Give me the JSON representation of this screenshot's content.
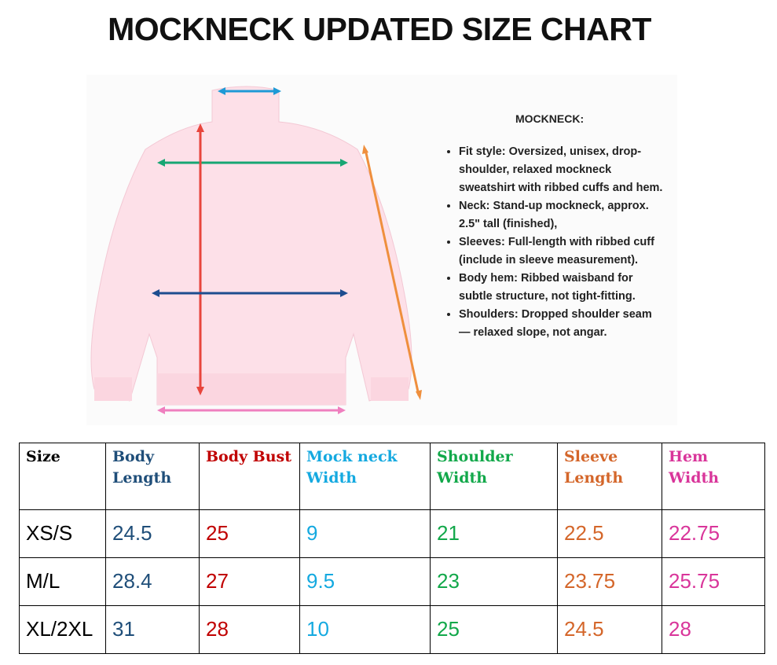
{
  "header": {
    "title": "MOCKNECK UPDATED SIZE CHART"
  },
  "details": {
    "heading": "MOCKNECK:",
    "bullets": [
      "Fit style: Oversized, unisex, drop-shoulder, relaxed mockneck sweatshirt with ribbed cuffs and hem.",
      "Neck: Stand-up mockneck, approx. 2.5\" tall (finished),",
      "Sleeves: Full-length with ribbed cuff (include in sleeve measurement).",
      "Body hem: Ribbed waisband for subtle structure, not tight-fitting.",
      "Shoulders: Dropped shoulder seam — relaxed slope, not angar."
    ]
  },
  "table": {
    "columns": [
      "Size",
      "Body Length",
      "Body Bust",
      "Mock neck Width",
      "Shoulder Width",
      "Sleeve Length",
      "Hem Width"
    ],
    "rows": [
      [
        "XS/S",
        24.5,
        25,
        9,
        21,
        22.5,
        22.75
      ],
      [
        "M/L",
        28.4,
        27,
        9.5,
        23,
        23.75,
        25.75
      ],
      [
        "XL/2XL",
        31,
        28,
        10,
        25,
        24.5,
        28
      ]
    ]
  }
}
